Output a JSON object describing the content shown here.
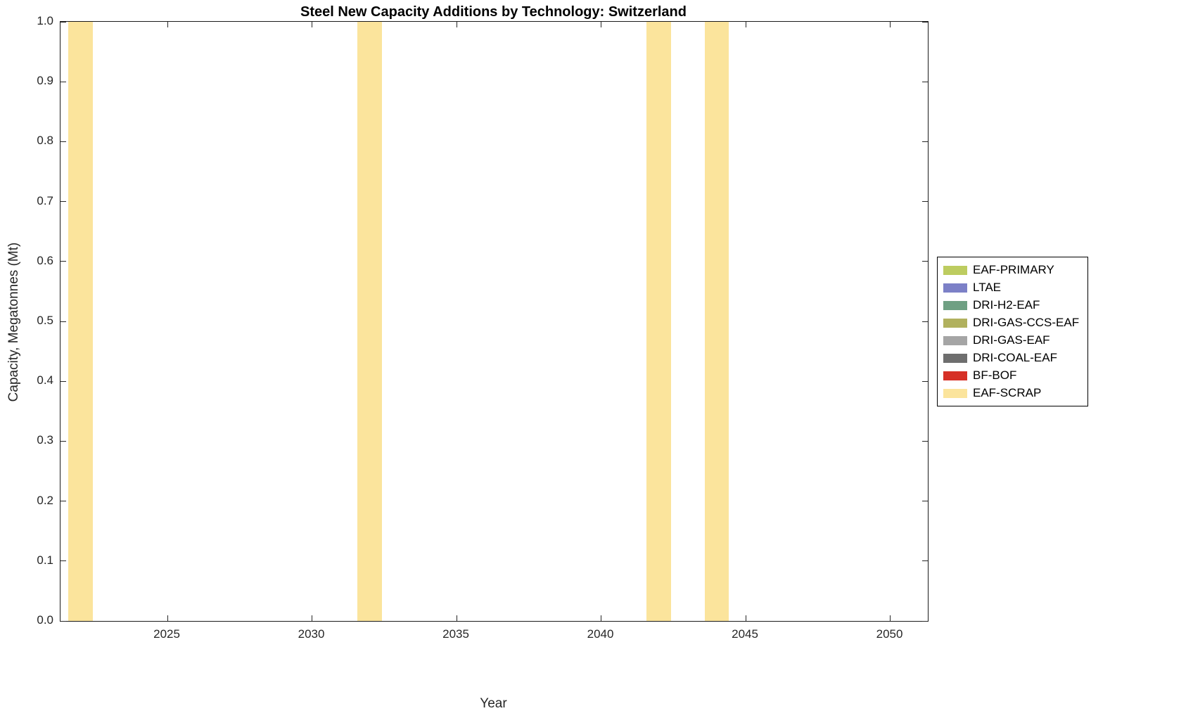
{
  "chart_data": {
    "type": "bar",
    "title": "Steel New Capacity Additions by Technology: Switzerland",
    "xlabel": "Year",
    "ylabel": "Capacity, Megatonnes (Mt)",
    "xlim": [
      2021.3,
      2051.3
    ],
    "ylim": [
      0.0,
      1.0
    ],
    "grid": false,
    "bar_width_years": 0.85,
    "xticks": [
      {
        "value": 2025,
        "label": "2025"
      },
      {
        "value": 2030,
        "label": "2030"
      },
      {
        "value": 2035,
        "label": "2035"
      },
      {
        "value": 2040,
        "label": "2040"
      },
      {
        "value": 2045,
        "label": "2045"
      },
      {
        "value": 2050,
        "label": "2050"
      }
    ],
    "yticks": [
      {
        "value": 0.0,
        "label": "0.0"
      },
      {
        "value": 0.1,
        "label": "0.1"
      },
      {
        "value": 0.2,
        "label": "0.2"
      },
      {
        "value": 0.3,
        "label": "0.3"
      },
      {
        "value": 0.4,
        "label": "0.4"
      },
      {
        "value": 0.5,
        "label": "0.5"
      },
      {
        "value": 0.6,
        "label": "0.6"
      },
      {
        "value": 0.7,
        "label": "0.7"
      },
      {
        "value": 0.8,
        "label": "0.8"
      },
      {
        "value": 0.9,
        "label": "0.9"
      },
      {
        "value": 1.0,
        "label": "1.0"
      }
    ],
    "series": [
      {
        "name": "EAF-SCRAP",
        "color": "#FBE49C",
        "x": [
          2022,
          2032,
          2042,
          2044
        ],
        "values": [
          1.0,
          1.0,
          1.0,
          1.0
        ]
      }
    ],
    "legend": {
      "position": "right-outside",
      "entries": [
        {
          "label": "EAF-PRIMARY",
          "color": "#BDCC60"
        },
        {
          "label": "LTAE",
          "color": "#7C80C7"
        },
        {
          "label": "DRI-H2-EAF",
          "color": "#6FA083"
        },
        {
          "label": "DRI-GAS-CCS-EAF",
          "color": "#B1B15E"
        },
        {
          "label": "DRI-GAS-EAF",
          "color": "#A5A5A5"
        },
        {
          "label": "DRI-COAL-EAF",
          "color": "#6E6E6E"
        },
        {
          "label": "BF-BOF",
          "color": "#D63026"
        },
        {
          "label": "EAF-SCRAP",
          "color": "#FBE49C"
        }
      ]
    }
  }
}
